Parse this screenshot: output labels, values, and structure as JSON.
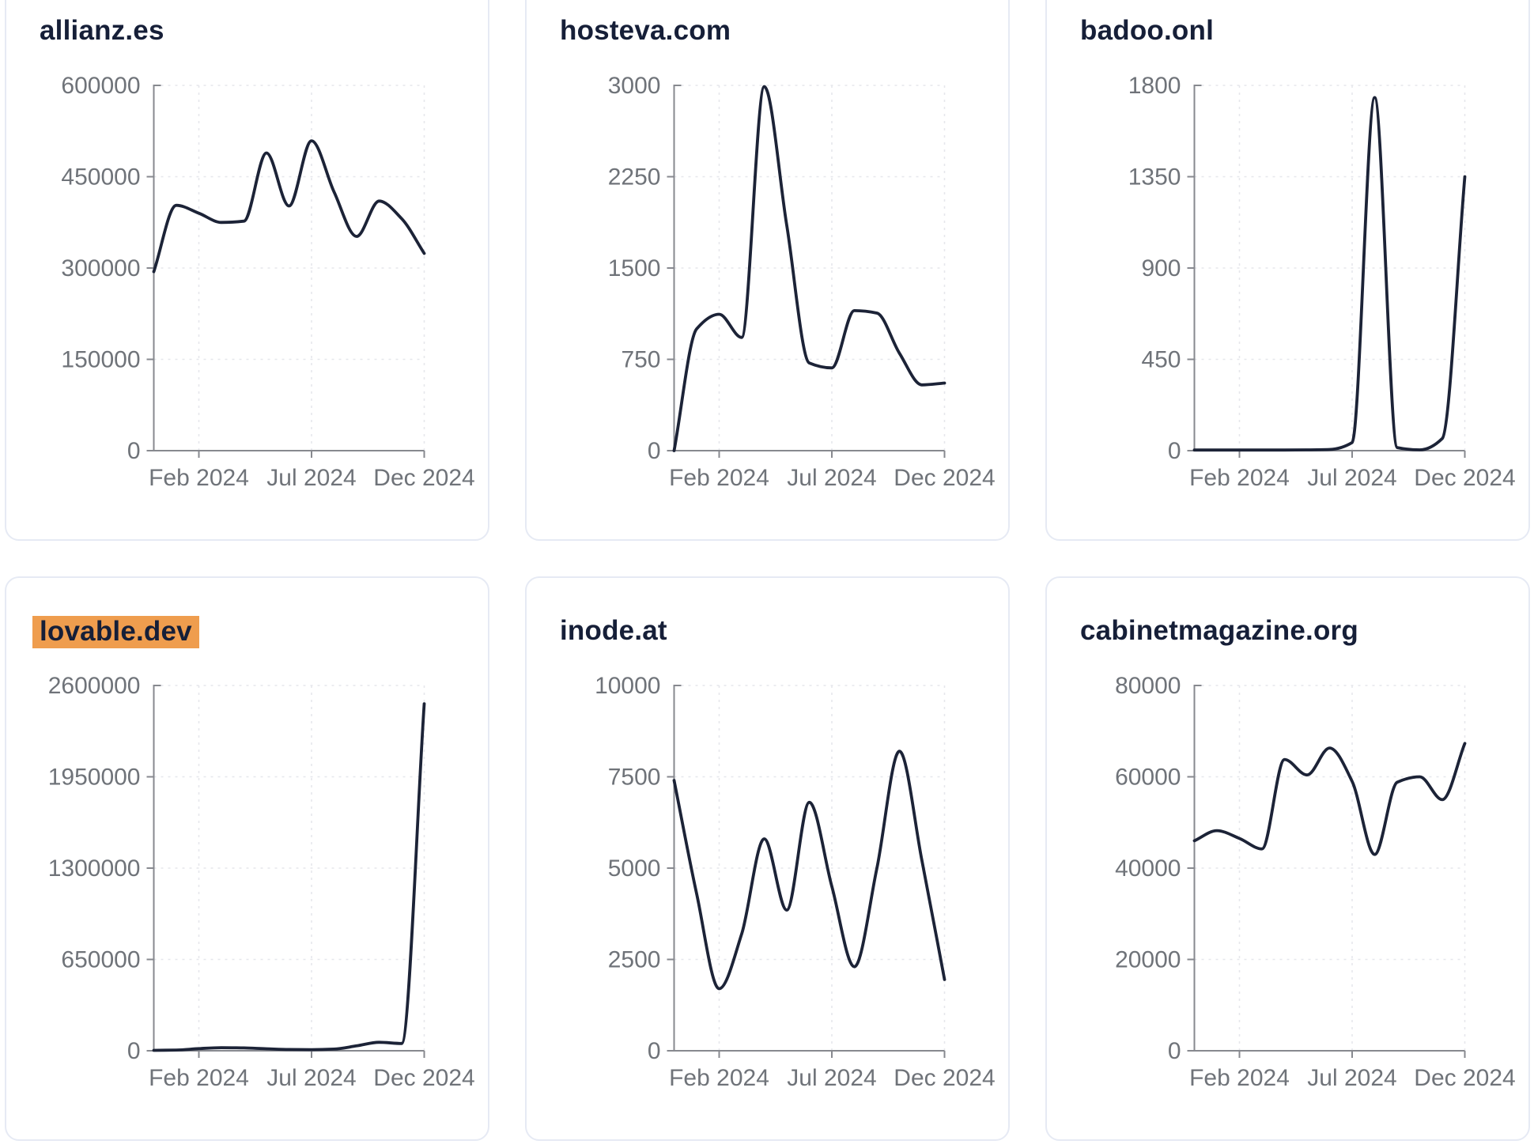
{
  "page": {
    "background_color": "#ffffff",
    "card_border_color": "#e6eaf4",
    "title_color": "#161f38",
    "line_color": "#1c2337",
    "tick_label_color": "#6f7379",
    "axis_color": "#87898f",
    "gridline_color": "#e6e7ec",
    "highlight_color": "#ef9d4e"
  },
  "axis_shared": {
    "x_tick_labels": [
      "Feb 2024",
      "Jul 2024",
      "Dec 2024"
    ],
    "x_tick_indices": [
      2,
      7,
      12
    ],
    "points_per_series": 13,
    "period": "monthly",
    "grid": "dashed"
  },
  "chart_data": [
    {
      "type": "line",
      "title": "allianz.es",
      "highlighted": false,
      "y_ticks": [
        "0",
        "150000",
        "300000",
        "450000",
        "600000"
      ],
      "ylim": [
        0,
        600000
      ],
      "x_tick_labels": [
        "Feb 2024",
        "Jul 2024",
        "Dec 2024"
      ],
      "values": [
        294000,
        403000,
        390000,
        375000,
        377000,
        489000,
        402000,
        509000,
        425000,
        352000,
        410000,
        381000,
        324000
      ]
    },
    {
      "type": "line",
      "title": "hosteva.com",
      "highlighted": false,
      "y_ticks": [
        "0",
        "750",
        "1500",
        "2250",
        "3000"
      ],
      "ylim": [
        0,
        3000
      ],
      "x_tick_labels": [
        "Feb 2024",
        "Jul 2024",
        "Dec 2024"
      ],
      "values": [
        0,
        1000,
        1120,
        930,
        2990,
        1850,
        720,
        680,
        1150,
        1130,
        800,
        540,
        555
      ]
    },
    {
      "type": "line",
      "title": "badoo.onl",
      "highlighted": false,
      "y_ticks": [
        "0",
        "450",
        "900",
        "1350",
        "1800"
      ],
      "ylim": [
        0,
        1800
      ],
      "x_tick_labels": [
        "Feb 2024",
        "Jul 2024",
        "Dec 2024"
      ],
      "values": [
        3,
        3,
        3,
        3,
        3,
        4,
        6,
        40,
        1740,
        15,
        4,
        60,
        1350
      ]
    },
    {
      "type": "line",
      "title": "lovable.dev",
      "highlighted": true,
      "y_ticks": [
        "0",
        "650000",
        "1300000",
        "1950000",
        "2600000"
      ],
      "ylim": [
        0,
        2600000
      ],
      "x_tick_labels": [
        "Feb 2024",
        "Jul 2024",
        "Dec 2024"
      ],
      "values": [
        3000,
        5000,
        15000,
        22000,
        20000,
        14000,
        9000,
        8000,
        12000,
        35000,
        60000,
        52000,
        2470000
      ]
    },
    {
      "type": "line",
      "title": "inode.at",
      "highlighted": false,
      "y_ticks": [
        "0",
        "2500",
        "5000",
        "7500",
        "10000"
      ],
      "ylim": [
        0,
        10000
      ],
      "x_tick_labels": [
        "Feb 2024",
        "Jul 2024",
        "Dec 2024"
      ],
      "values": [
        7400,
        4300,
        1700,
        3200,
        5800,
        3850,
        6800,
        4500,
        2300,
        5000,
        8200,
        5200,
        1950
      ]
    },
    {
      "type": "line",
      "title": "cabinetmagazine.org",
      "highlighted": false,
      "y_ticks": [
        "0",
        "20000",
        "40000",
        "60000",
        "80000"
      ],
      "ylim": [
        0,
        80000
      ],
      "x_tick_labels": [
        "Feb 2024",
        "Jul 2024",
        "Dec 2024"
      ],
      "values": [
        46000,
        48200,
        46500,
        44200,
        63800,
        60400,
        66300,
        59000,
        43000,
        58800,
        60000,
        55000,
        67300
      ]
    }
  ]
}
